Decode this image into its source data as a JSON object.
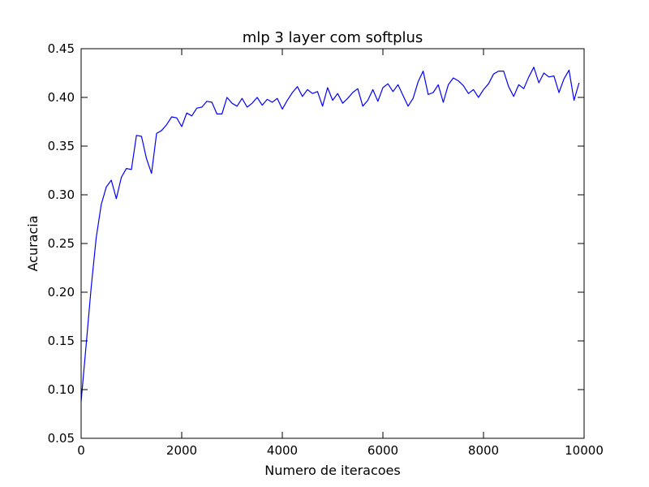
{
  "chart_data": {
    "type": "line",
    "title": "mlp 3 layer com softplus",
    "xlabel": "Numero de iteracoes",
    "ylabel": "Acuracia",
    "xlim": [
      0,
      10000
    ],
    "ylim": [
      0.05,
      0.45
    ],
    "xticks": [
      0,
      2000,
      4000,
      6000,
      8000,
      10000
    ],
    "xtick_labels": [
      "0",
      "2000",
      "4000",
      "6000",
      "8000",
      "10000"
    ],
    "yticks": [
      0.05,
      0.1,
      0.15,
      0.2,
      0.25,
      0.3,
      0.35,
      0.4,
      0.45
    ],
    "ytick_labels": [
      "0.05",
      "0.10",
      "0.15",
      "0.20",
      "0.25",
      "0.30",
      "0.35",
      "0.40",
      "0.45"
    ],
    "grid": false,
    "series": [
      {
        "color": "#0000ff",
        "x": [
          0,
          100,
          200,
          300,
          400,
          500,
          600,
          700,
          800,
          900,
          1000,
          1100,
          1200,
          1300,
          1400,
          1500,
          1600,
          1700,
          1800,
          1900,
          2000,
          2100,
          2200,
          2300,
          2400,
          2500,
          2600,
          2700,
          2800,
          2900,
          3000,
          3100,
          3200,
          3300,
          3400,
          3500,
          3600,
          3700,
          3800,
          3900,
          4000,
          4100,
          4200,
          4300,
          4400,
          4500,
          4600,
          4700,
          4800,
          4900,
          5000,
          5100,
          5200,
          5300,
          5400,
          5500,
          5600,
          5700,
          5800,
          5900,
          6000,
          6100,
          6200,
          6300,
          6400,
          6500,
          6600,
          6700,
          6800,
          6900,
          7000,
          7100,
          7200,
          7300,
          7400,
          7500,
          7600,
          7700,
          7800,
          7900,
          8000,
          8100,
          8200,
          8300,
          8400,
          8500,
          8600,
          8700,
          8800,
          8900,
          9000,
          9100,
          9200,
          9300,
          9400,
          9500,
          9600,
          9700,
          9800,
          9900
        ],
        "y": [
          0.088,
          0.146,
          0.205,
          0.256,
          0.29,
          0.308,
          0.315,
          0.296,
          0.318,
          0.327,
          0.326,
          0.361,
          0.36,
          0.337,
          0.322,
          0.363,
          0.366,
          0.372,
          0.38,
          0.379,
          0.37,
          0.384,
          0.381,
          0.389,
          0.39,
          0.396,
          0.395,
          0.383,
          0.383,
          0.4,
          0.394,
          0.391,
          0.399,
          0.39,
          0.394,
          0.4,
          0.392,
          0.398,
          0.395,
          0.399,
          0.388,
          0.397,
          0.405,
          0.411,
          0.401,
          0.408,
          0.404,
          0.406,
          0.391,
          0.41,
          0.397,
          0.404,
          0.394,
          0.399,
          0.405,
          0.409,
          0.391,
          0.397,
          0.408,
          0.396,
          0.41,
          0.414,
          0.406,
          0.413,
          0.402,
          0.391,
          0.399,
          0.416,
          0.427,
          0.403,
          0.405,
          0.413,
          0.395,
          0.413,
          0.42,
          0.417,
          0.412,
          0.404,
          0.408,
          0.4,
          0.408,
          0.414,
          0.424,
          0.427,
          0.427,
          0.411,
          0.401,
          0.413,
          0.409,
          0.421,
          0.431,
          0.415,
          0.425,
          0.421,
          0.422,
          0.405,
          0.419,
          0.428,
          0.397,
          0.415
        ]
      }
    ]
  }
}
